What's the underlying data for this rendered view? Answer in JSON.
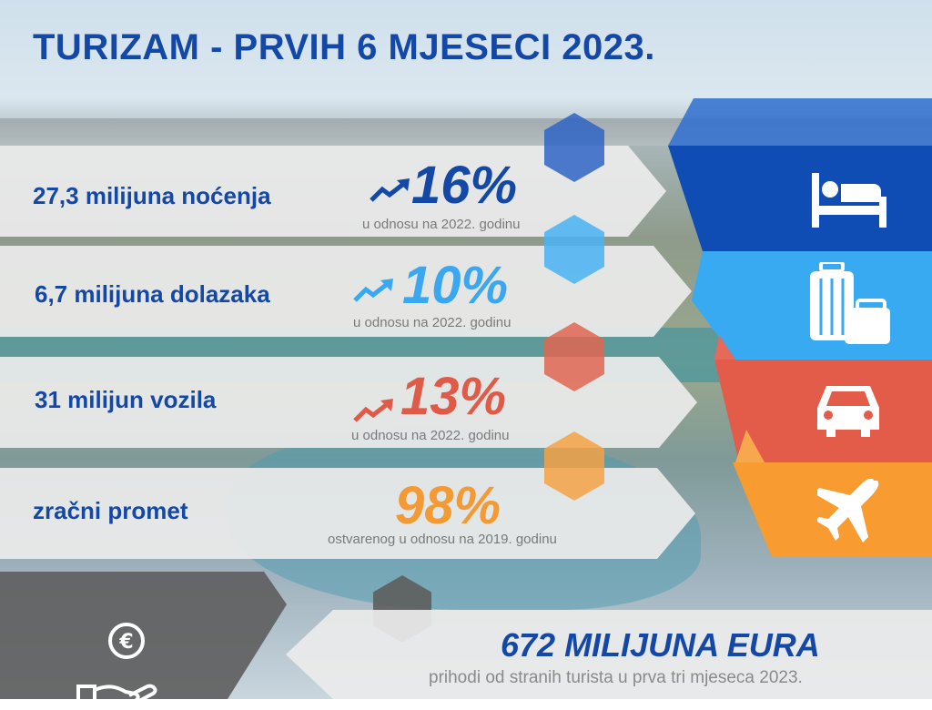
{
  "title": "TURIZAM - PRVIH 6 MJESECI 2023.",
  "rows": [
    {
      "label": "27,3 milijuna noćenja",
      "percent": "16%",
      "note": "u odnosu na 2022. godinu",
      "color": "#1348a7",
      "icon": "bed-icon",
      "tile_color": "#0f4cb3"
    },
    {
      "label": "6,7 milijuna dolazaka",
      "percent": "10%",
      "note": "u odnosu na 2022. godinu",
      "color": "#3aa7f0",
      "icon": "luggage-icon",
      "tile_color": "#37aaf2"
    },
    {
      "label": "31 milijun vozila",
      "percent": "13%",
      "note": "u odnosu na 2022. godinu",
      "color": "#e05a48",
      "icon": "car-icon",
      "tile_color": "#e35c4a"
    },
    {
      "label": "zračni promet",
      "percent": "98%",
      "note": "ostvarenog u odnosu na 2019. godinu",
      "color": "#f39a35",
      "icon": "airplane-icon",
      "tile_color": "#f89b31"
    }
  ],
  "revenue": {
    "amount": "672 MILIJUNA EURA",
    "description": "prihodi od stranih turista u prva tri mjeseca 2023.",
    "icon": "euro-hand-icon",
    "color": "#6b6b6b"
  }
}
